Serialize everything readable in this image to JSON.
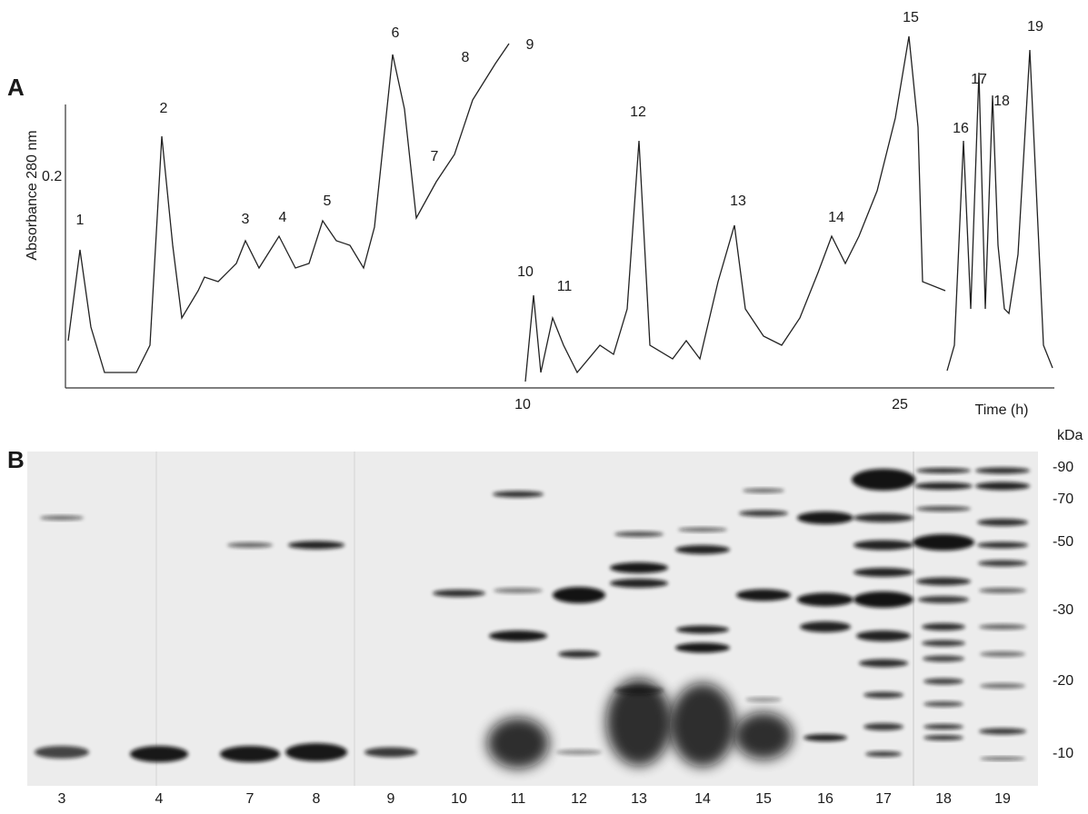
{
  "panel_a": {
    "label": "A",
    "y_axis_label": "Absorbance 280 nm",
    "y_tick": "0.2",
    "x_ticks": [
      "10",
      "25"
    ],
    "x_axis_label": "Time (h)",
    "peak_labels": [
      "1",
      "2",
      "3",
      "4",
      "5",
      "6",
      "7",
      "8",
      "9",
      "10",
      "11",
      "12",
      "13",
      "14",
      "15",
      "16",
      "17",
      "18",
      "19"
    ]
  },
  "panel_b": {
    "label": "B",
    "unit": "kDa",
    "markers": [
      "-90",
      "-70",
      "-50",
      "-30",
      "-20",
      "-10"
    ],
    "lanes": [
      "3",
      "4",
      "7",
      "8",
      "9",
      "10",
      "11",
      "12",
      "13",
      "14",
      "15",
      "16",
      "17",
      "18",
      "19"
    ]
  }
}
